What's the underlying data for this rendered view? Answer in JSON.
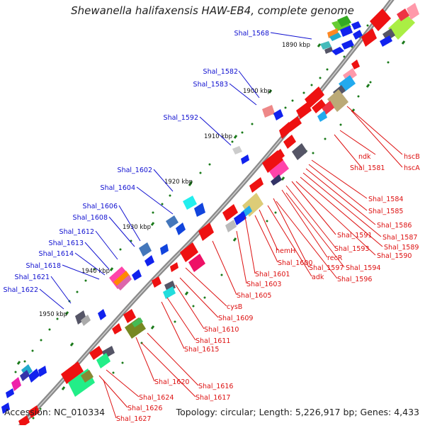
{
  "title": "Shewanella halifaxensis HAW-EB4, complete genome",
  "footer": {
    "accession": "Accession: NC_010334",
    "summary": "Topology: circular; Length: 5,226,917 bp; Genes: 4,433"
  },
  "colors": {
    "left_labels": "#1010d0",
    "right_labels": "#dd1111",
    "backbone": "#8f8f8f",
    "tick": "#1a7a1a"
  },
  "ticks": [
    "1890 kbp",
    "1900 kbp",
    "1910 kbp",
    "1920 kbp",
    "1930 kbp",
    "1940 kbp",
    "1950 kbp"
  ],
  "left_labels": [
    "Shal_1568",
    "Shal_1582",
    "Shal_1583",
    "Shal_1592",
    "Shal_1602",
    "Shal_1604",
    "Shal_1606",
    "Shal_1608",
    "Shal_1612",
    "Shal_1613",
    "Shal_1614",
    "Shal_1618",
    "Shal_1621",
    "Shal_1622"
  ],
  "right_labels": [
    "hscB",
    "ndk",
    "hscA",
    "Shal_1581",
    "Shal_1584",
    "Shal_1585",
    "Shal_1586",
    "Shal_1587",
    "Shal_1591",
    "Shal_1589",
    "Shal_1593",
    "Shal_1590",
    "hemH",
    "recR",
    "Shal_1600",
    "Shal_1597",
    "Shal_1594",
    "adk",
    "Shal_1596",
    "Shal_1601",
    "Shal_1603",
    "Shal_1605",
    "cysB",
    "Shal_1609",
    "Shal_1610",
    "Shal_1611",
    "Shal_1615",
    "Shal_1620",
    "Shal_1616",
    "Shal_1617",
    "Shal_1624",
    "Shal_1626",
    "Shal_1627"
  ]
}
